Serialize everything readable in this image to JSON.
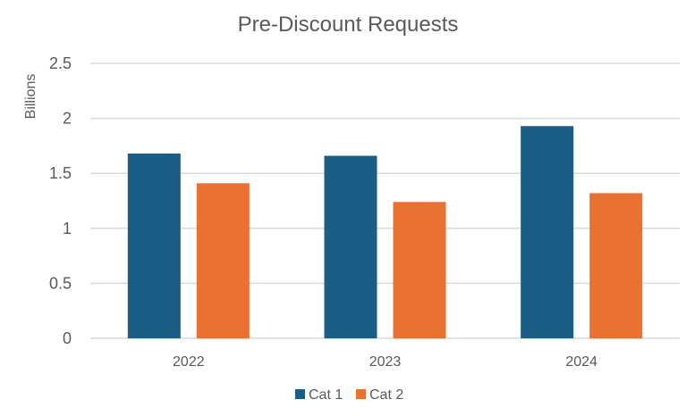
{
  "chart_data": {
    "type": "bar",
    "title": "Pre-Discount Requests",
    "ylabel": "Billions",
    "xlabel": "",
    "categories": [
      "2022",
      "2023",
      "2024"
    ],
    "series": [
      {
        "name": "Cat 1",
        "values": [
          1.68,
          1.66,
          1.93
        ],
        "color": "#1a5e85"
      },
      {
        "name": "Cat 2",
        "values": [
          1.41,
          1.24,
          1.32
        ],
        "color": "#e97132"
      }
    ],
    "ylim": [
      0,
      2.5
    ],
    "yticks": [
      "0",
      "0.5",
      "1",
      "1.5",
      "2",
      "2.5"
    ],
    "grid": true,
    "legend_position": "bottom"
  }
}
